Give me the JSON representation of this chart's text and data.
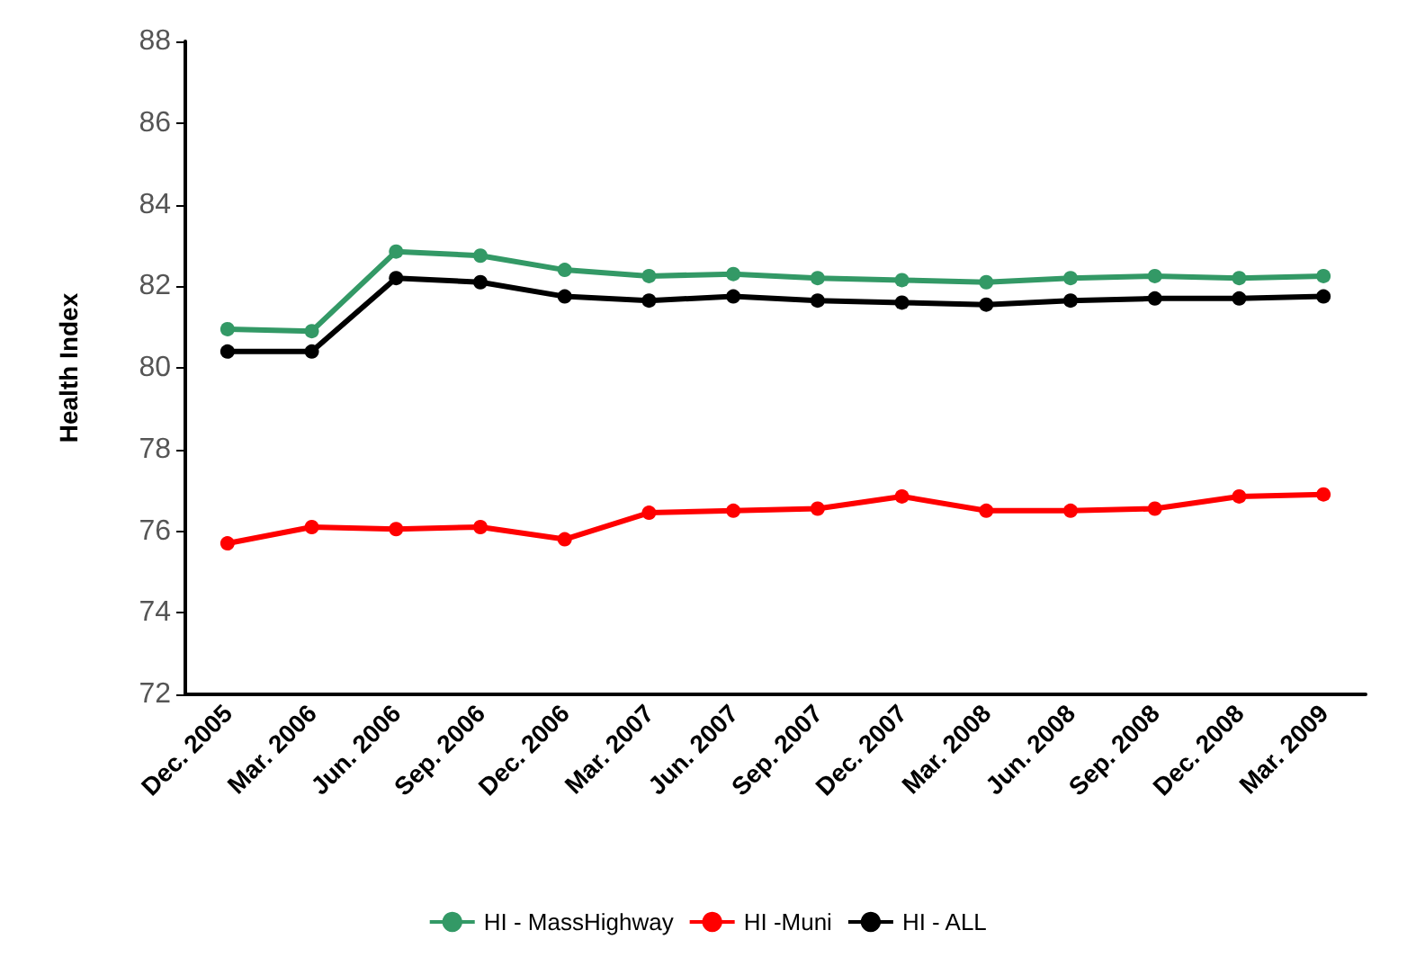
{
  "chart_data": {
    "type": "line",
    "ylabel": "Health Index",
    "categories": [
      "Dec. 2005",
      "Mar. 2006",
      "Jun. 2006",
      "Sep. 2006",
      "Dec. 2006",
      "Mar. 2007",
      "Jun. 2007",
      "Sep. 2007",
      "Dec. 2007",
      "Mar. 2008",
      "Jun. 2008",
      "Sep. 2008",
      "Dec. 2008",
      "Mar. 2009"
    ],
    "series": [
      {
        "name": "HI - MassHighway",
        "color": "#339966",
        "values": [
          80.95,
          80.9,
          82.85,
          82.75,
          82.4,
          82.25,
          82.3,
          82.2,
          82.15,
          82.1,
          82.2,
          82.25,
          82.2,
          82.25
        ]
      },
      {
        "name": "HI -Muni",
        "color": "#ff0000",
        "values": [
          75.7,
          76.1,
          76.05,
          76.1,
          75.8,
          76.45,
          76.5,
          76.55,
          76.85,
          76.5,
          76.5,
          76.55,
          76.85,
          76.9
        ]
      },
      {
        "name": "HI - ALL",
        "color": "#000000",
        "values": [
          80.4,
          80.4,
          82.2,
          82.1,
          81.75,
          81.65,
          81.75,
          81.65,
          81.6,
          81.55,
          81.65,
          81.7,
          81.7,
          81.75
        ]
      }
    ],
    "ylim": [
      72,
      88
    ],
    "yticks": [
      72,
      74,
      76,
      78,
      80,
      82,
      84,
      86,
      88
    ],
    "grid": false,
    "legend": "bottom",
    "marker": "circle",
    "line_style": "solid"
  }
}
